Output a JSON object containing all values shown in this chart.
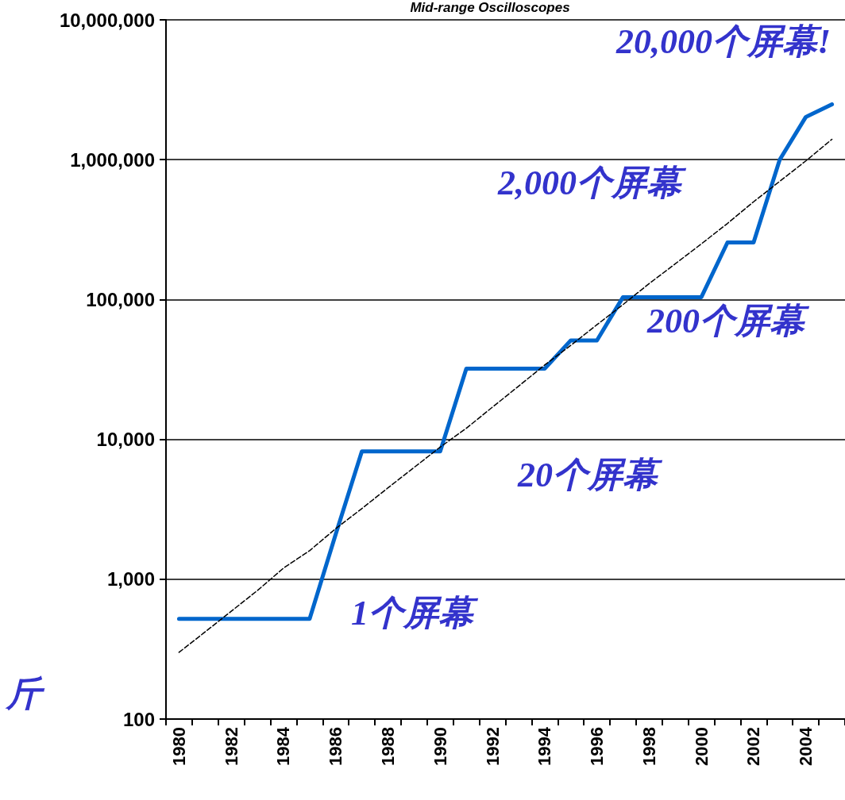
{
  "chart_data": {
    "type": "line",
    "title": "Mid-range Oscilloscopes",
    "categories": [
      "1980",
      null,
      "1982",
      null,
      "1984",
      null,
      "1986",
      null,
      "1988",
      null,
      "1990",
      null,
      "1992",
      null,
      "1994",
      null,
      "1996",
      null,
      "1998",
      null,
      "2000",
      null,
      "2002",
      null,
      "2004",
      null
    ],
    "series": [
      {
        "color": "#0066cc",
        "line_style": "solid",
        "values": [
          520,
          520,
          520,
          520,
          520,
          520,
          2100,
          8200,
          8200,
          8200,
          8200,
          32000,
          32000,
          32000,
          32000,
          51000,
          51000,
          104000,
          104000,
          104000,
          104000,
          256000,
          256000,
          1000000,
          2020000,
          2490000
        ]
      },
      {
        "color": "#000000",
        "line_style": "dashed",
        "values": [
          300,
          420,
          590,
          830,
          1200,
          1600,
          2300,
          3200,
          4500,
          6300,
          8800,
          12000,
          17000,
          24000,
          34000,
          47000,
          66000,
          92000,
          130000,
          180000,
          250000,
          350000,
          500000,
          700000,
          980000,
          1400000
        ]
      }
    ],
    "log": true,
    "ylim": [
      100,
      10000000
    ],
    "yticks": [
      {
        "value": 100,
        "label": "100"
      },
      {
        "value": 1000,
        "label": "1,000"
      },
      {
        "value": 10000,
        "label": "10,000"
      },
      {
        "value": 100000,
        "label": "100,000"
      },
      {
        "value": 1000000,
        "label": "1,000,000"
      },
      {
        "value": 10000000,
        "label": "10,000,000"
      }
    ],
    "grid": "y",
    "marker": "none",
    "annotations": [
      "20,000个屏幕!",
      "2,000个屏幕",
      "200个屏幕",
      "20个屏幕",
      "1个屏幕",
      "斤"
    ]
  }
}
